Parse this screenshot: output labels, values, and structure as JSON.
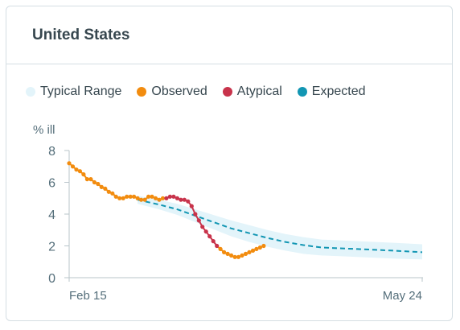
{
  "card": {
    "title": "United States"
  },
  "legend": [
    {
      "label": "Typical Range",
      "color": "#e3f4fa",
      "icon": "circle"
    },
    {
      "label": "Observed",
      "color": "#f28c0f",
      "icon": "circle"
    },
    {
      "label": "Atypical",
      "color": "#c8334b",
      "icon": "circle"
    },
    {
      "label": "Expected",
      "color": "#1296b3",
      "icon": "circle"
    }
  ],
  "chart_data": {
    "type": "line",
    "ylabel": "% ill",
    "ylim": [
      0,
      8
    ],
    "yticks": [
      0,
      2,
      4,
      6,
      8
    ],
    "x_domain": [
      "Feb 15",
      "May 24"
    ],
    "xticks": [
      {
        "label": "Feb 15",
        "day": 0
      },
      {
        "label": "May 24",
        "day": 98
      }
    ],
    "grid": false,
    "legend_position": "top",
    "series": [
      {
        "name": "Observed",
        "color": "#f28c0f",
        "x": [
          0,
          1,
          2,
          3,
          4,
          5,
          6,
          7,
          8,
          9,
          10,
          11,
          12,
          13,
          14,
          15,
          16,
          17,
          18,
          19,
          20,
          21,
          22,
          23,
          24,
          25,
          26,
          27,
          28,
          29,
          30,
          31,
          32,
          33,
          34,
          35,
          36,
          37,
          38,
          39,
          40,
          41,
          42,
          43,
          44,
          45,
          46,
          47,
          48,
          49,
          50,
          51,
          52,
          53,
          54
        ],
        "y": [
          7.2,
          7.0,
          6.8,
          6.7,
          6.5,
          6.2,
          6.2,
          6.0,
          5.9,
          5.7,
          5.6,
          5.4,
          5.3,
          5.1,
          5.0,
          5.0,
          5.1,
          5.1,
          5.1,
          5.0,
          4.9,
          4.9,
          5.1,
          5.1,
          5.0,
          4.9,
          5.0,
          5.0,
          5.1,
          5.1,
          5.0,
          4.9,
          4.9,
          4.8,
          4.5,
          4.0,
          3.6,
          3.2,
          2.9,
          2.6,
          2.3,
          2.0,
          1.8,
          1.6,
          1.5,
          1.4,
          1.3,
          1.3,
          1.4,
          1.5,
          1.6,
          1.7,
          1.8,
          1.9,
          2.0
        ],
        "atypical_x": [
          27,
          28,
          29,
          30,
          31,
          32,
          33,
          34,
          35,
          36,
          37,
          38,
          39,
          40,
          41
        ]
      },
      {
        "name": "Expected",
        "color": "#1296b3",
        "dashed": true,
        "x": [
          19,
          25,
          30,
          35,
          40,
          45,
          50,
          55,
          60,
          65,
          70,
          75,
          80,
          85,
          90,
          98
        ],
        "y": [
          4.9,
          4.6,
          4.3,
          3.9,
          3.5,
          3.1,
          2.8,
          2.5,
          2.25,
          2.05,
          1.9,
          1.85,
          1.8,
          1.75,
          1.7,
          1.6
        ]
      },
      {
        "name": "Typical Range",
        "color": "#e3f4fa",
        "x": [
          19,
          25,
          30,
          35,
          40,
          45,
          50,
          55,
          60,
          65,
          70,
          75,
          80,
          85,
          90,
          98
        ],
        "y_low": [
          4.65,
          4.3,
          3.95,
          3.5,
          3.05,
          2.6,
          2.25,
          1.95,
          1.7,
          1.5,
          1.4,
          1.35,
          1.3,
          1.25,
          1.2,
          1.15
        ],
        "y_high": [
          5.15,
          4.9,
          4.65,
          4.3,
          3.95,
          3.6,
          3.3,
          3.0,
          2.75,
          2.55,
          2.4,
          2.35,
          2.3,
          2.25,
          2.2,
          2.1
        ]
      }
    ]
  }
}
